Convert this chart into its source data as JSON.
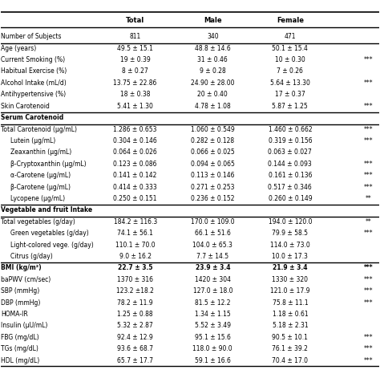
{
  "headers": [
    "",
    "Total",
    "Male",
    "Female",
    ""
  ],
  "rows": [
    [
      "Number of Subjects",
      "811",
      "340",
      "471",
      ""
    ],
    [
      "Age (years)",
      "49.5 ± 15.1",
      "48.8 ± 14.6",
      "50.1 ± 15.4",
      ""
    ],
    [
      "Current Smoking (%)",
      "19 ± 0.39",
      "31 ± 0.46",
      "10 ± 0.30",
      "***"
    ],
    [
      "Habitual Exercise (%)",
      "8 ± 0.27",
      "9 ± 0.28",
      "7 ± 0.26",
      ""
    ],
    [
      "Alcohol Intake (mL/d)",
      "13.75 ± 22.86",
      "24.90 ± 28.00",
      "5.64 ± 13.30",
      "***"
    ],
    [
      "Antihypertensive (%)",
      "18 ± 0.38",
      "20 ± 0.40",
      "17 ± 0.37",
      ""
    ],
    [
      "Skin Carotenoid",
      "5.41 ± 1.30",
      "4.78 ± 1.08",
      "5.87 ± 1.25",
      "***"
    ],
    [
      "Serum Carotenoid",
      "",
      "",
      "",
      ""
    ],
    [
      "Total Carotenoid (μg/mL)",
      "1.286 ± 0.653",
      "1.060 ± 0.549",
      "1.460 ± 0.662",
      "***"
    ],
    [
      "  Lutein (μg/mL)",
      "0.304 ± 0.146",
      "0.282 ± 0.128",
      "0.319 ± 0.156",
      "***"
    ],
    [
      "  Zeaxanthin (μg/mL)",
      "0.064 ± 0.026",
      "0.066 ± 0.025",
      "0.063 ± 0.027",
      ""
    ],
    [
      "  β-Cryptoxanthin (μg/mL)",
      "0.123 ± 0.086",
      "0.094 ± 0.065",
      "0.144 ± 0.093",
      "***"
    ],
    [
      "  α-Carotene (μg/mL)",
      "0.141 ± 0.142",
      "0.113 ± 0.146",
      "0.161 ± 0.136",
      "***"
    ],
    [
      "  β-Carotene (μg/mL)",
      "0.414 ± 0.333",
      "0.271 ± 0.253",
      "0.517 ± 0.346",
      "***"
    ],
    [
      "  Lycopene (μg/mL)",
      "0.250 ± 0.151",
      "0.236 ± 0.152",
      "0.260 ± 0.149",
      "**"
    ],
    [
      "Vegetable and fruit Intake",
      "",
      "",
      "",
      ""
    ],
    [
      "Total vegetables (g/day)",
      "184.2 ± 116.3",
      "170.0 ± 109.0",
      "194.0 ± 120.0",
      "**"
    ],
    [
      "  Green vegetables (g/day)",
      "74.1 ± 56.1",
      "66.1 ± 51.6",
      "79.9 ± 58.5",
      "***"
    ],
    [
      "  Light-colored vege. (g/day)",
      "110.1 ± 70.0",
      "104.0 ± 65.3",
      "114.0 ± 73.0",
      ""
    ],
    [
      "  Citrus (g/day)",
      "9.0 ± 16.2",
      "7.7 ± 14.5",
      "10.0 ± 17.3",
      ""
    ],
    [
      "BMI (kg/m²)",
      "22.7 ± 3.5",
      "23.9 ± 3.4",
      "21.9 ± 3.4",
      "***"
    ],
    [
      "baPWV (cm/sec)",
      "1370 ± 316",
      "1420 ± 304",
      "1330 ± 320",
      "***"
    ],
    [
      "SBP (mmHg)",
      "123.2 ±18.2",
      "127.0 ± 18.0",
      "121.0 ± 17.9",
      "***"
    ],
    [
      "DBP (mmHg)",
      "78.2 ± 11.9",
      "81.5 ± 12.2",
      "75.8 ± 11.1",
      "***"
    ],
    [
      "HOMA-IR",
      "1.25 ± 0.88",
      "1.34 ± 1.15",
      "1.18 ± 0.61",
      ""
    ],
    [
      "Insulin (μU/mL)",
      "5.32 ± 2.87",
      "5.52 ± 3.49",
      "5.18 ± 2.31",
      ""
    ],
    [
      "FBG (mg/dL)",
      "92.4 ± 12.9",
      "95.1 ± 15.6",
      "90.5 ± 10.1",
      "***"
    ],
    [
      "TGs (mg/dL)",
      "93.6 ± 68.7",
      "118.0 ± 90.0",
      "76.1 ± 39.2",
      "***"
    ],
    [
      "HDL (mg/dL)",
      "65.7 ± 17.7",
      "59.1 ± 16.6",
      "70.4 ± 17.0",
      "***"
    ]
  ],
  "section_header_rows": [
    7,
    15,
    20
  ],
  "thick_line_after": [
    0,
    6,
    7,
    14,
    15,
    19
  ],
  "bold_header_rows": [
    0
  ],
  "background_color": "#ffffff",
  "text_color": "#000000",
  "header_bold": true
}
